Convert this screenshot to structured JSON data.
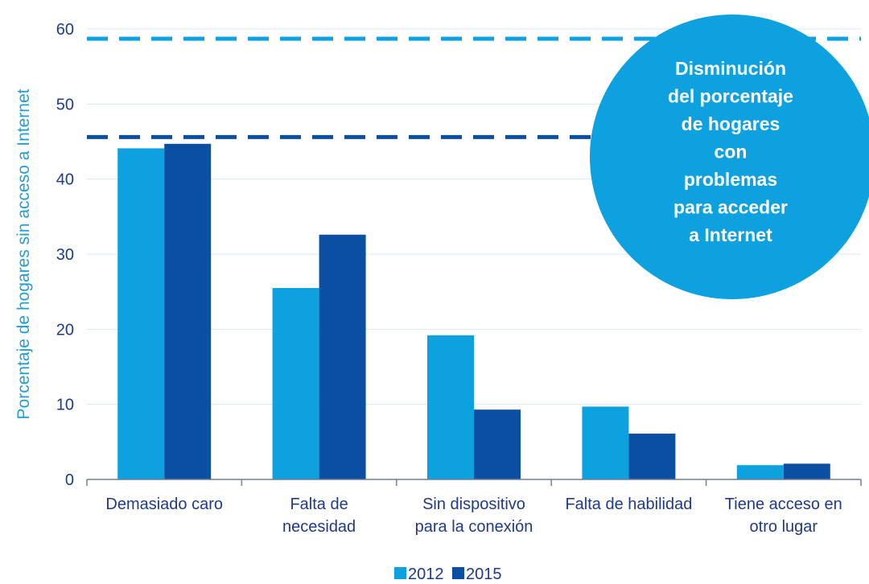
{
  "chart_data": {
    "type": "bar",
    "title": "",
    "xlabel": "",
    "ylabel": "Porcentaje de hogares sin acceso a Internet",
    "ylim": [
      0,
      60
    ],
    "yticks": [
      0,
      10,
      20,
      30,
      40,
      50,
      60
    ],
    "grid": true,
    "legend_position": "bottom",
    "categories": [
      [
        "Demasiado caro"
      ],
      [
        "Falta de",
        "necesidad"
      ],
      [
        "Sin dispositivo",
        "para la conexión"
      ],
      [
        "Falta de habilidad"
      ],
      [
        "Tiene acceso en",
        "otro lugar"
      ]
    ],
    "series": [
      {
        "name": "2012",
        "color": "#0da1e0",
        "values": [
          44.1,
          25.5,
          19.2,
          9.7,
          1.9
        ]
      },
      {
        "name": "2015",
        "color": "#0b4fa3",
        "values": [
          44.7,
          32.6,
          9.3,
          6.1,
          2.1
        ]
      }
    ],
    "reference_lines": [
      {
        "value": 58.7,
        "color": "#0da1e0",
        "style": "dashed"
      },
      {
        "value": 45.6,
        "color": "#0b4fa3",
        "style": "dashed"
      }
    ],
    "callout": {
      "lines": [
        "Disminución",
        "del porcentaje",
        "de hogares",
        "con",
        "problemas",
        "para acceder",
        "a Internet"
      ],
      "color": "#0da1e0"
    }
  }
}
